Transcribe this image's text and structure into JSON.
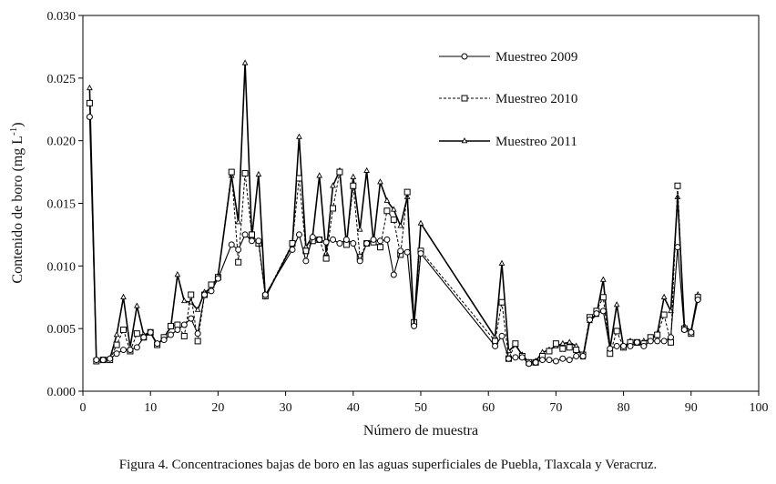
{
  "chart_data": {
    "type": "line",
    "title": "",
    "xlabel": "Número de muestra",
    "ylabel_main": "Contenido de boro (mg L",
    "ylabel_sup": "-1",
    "ylabel_end": ")",
    "xlim": [
      0,
      100
    ],
    "ylim": [
      0,
      0.03
    ],
    "xticks": [
      0,
      10,
      20,
      30,
      40,
      50,
      60,
      70,
      80,
      90,
      100
    ],
    "xtick_labels": [
      "0",
      "10",
      "20",
      "30",
      "40",
      "50",
      "60",
      "70",
      "80",
      "90",
      "100"
    ],
    "yticks": [
      0,
      0.005,
      0.01,
      0.015,
      0.02,
      0.025,
      0.03
    ],
    "ytick_labels": [
      "0.000",
      "0.005",
      "0.010",
      "0.015",
      "0.020",
      "0.025",
      "0.030"
    ],
    "legend_position": "top-right",
    "series": [
      {
        "name": "Muestreo 2009",
        "marker": "circle",
        "line": "solid",
        "x": [
          1,
          2,
          3,
          4,
          5,
          6,
          7,
          8,
          9,
          10,
          11,
          12,
          13,
          14,
          15,
          16,
          17,
          18,
          19,
          20,
          22,
          23,
          24,
          25,
          26,
          27,
          31,
          32,
          33,
          34,
          35,
          36,
          37,
          38,
          39,
          40,
          41,
          42,
          43,
          44,
          45,
          46,
          47,
          48,
          49,
          50,
          61,
          62,
          63,
          64,
          65,
          66,
          67,
          68,
          69,
          70,
          71,
          72,
          73,
          74,
          75,
          76,
          77,
          78,
          79,
          80,
          81,
          82,
          83,
          84,
          85,
          86,
          87,
          88,
          89,
          90,
          91
        ],
        "values": [
          0.0219,
          0.0025,
          0.0025,
          0.0026,
          0.003,
          0.0033,
          0.0033,
          0.0035,
          0.0043,
          0.0047,
          0.0038,
          0.0041,
          0.0045,
          0.0049,
          0.0053,
          0.0058,
          0.0046,
          0.0077,
          0.008,
          0.009,
          0.0117,
          0.0113,
          0.0125,
          0.012,
          0.012,
          0.0077,
          0.0113,
          0.0125,
          0.0104,
          0.0123,
          0.0121,
          0.0119,
          0.0121,
          0.0118,
          0.0121,
          0.0118,
          0.0104,
          0.0118,
          0.0121,
          0.012,
          0.0121,
          0.0093,
          0.0112,
          0.0111,
          0.0052,
          0.011,
          0.0036,
          0.0044,
          0.0026,
          0.0027,
          0.0027,
          0.0022,
          0.0023,
          0.0025,
          0.0025,
          0.0024,
          0.0026,
          0.0025,
          0.0028,
          0.0028,
          0.0057,
          0.0062,
          0.0064,
          0.0034,
          0.0036,
          0.0036,
          0.0036,
          0.0039,
          0.0036,
          0.004,
          0.004,
          0.004,
          0.0043,
          0.0115,
          0.0049,
          0.0047,
          0.0073
        ]
      },
      {
        "name": "Muestreo 2010",
        "marker": "square",
        "line": "dashed",
        "x": [
          1,
          2,
          3,
          4,
          5,
          6,
          7,
          8,
          9,
          10,
          11,
          12,
          13,
          14,
          15,
          16,
          17,
          18,
          19,
          20,
          22,
          23,
          24,
          25,
          26,
          27,
          31,
          32,
          33,
          34,
          35,
          36,
          37,
          38,
          39,
          40,
          41,
          42,
          43,
          44,
          45,
          46,
          47,
          48,
          49,
          50,
          61,
          62,
          63,
          64,
          65,
          66,
          67,
          68,
          69,
          70,
          71,
          72,
          73,
          74,
          75,
          76,
          77,
          78,
          79,
          80,
          81,
          82,
          83,
          84,
          85,
          86,
          87,
          88,
          89,
          90,
          91
        ],
        "values": [
          0.023,
          0.0024,
          0.0025,
          0.0025,
          0.0037,
          0.0049,
          0.0032,
          0.0046,
          0.0043,
          0.0047,
          0.0037,
          0.0043,
          0.0052,
          0.0053,
          0.0044,
          0.0077,
          0.004,
          0.0077,
          0.0085,
          0.0091,
          0.0175,
          0.0103,
          0.0174,
          0.0125,
          0.0118,
          0.0076,
          0.0118,
          0.017,
          0.0112,
          0.012,
          0.0121,
          0.0106,
          0.0146,
          0.0175,
          0.0117,
          0.0164,
          0.0107,
          0.0118,
          0.0119,
          0.0115,
          0.0144,
          0.0137,
          0.0109,
          0.0159,
          0.0055,
          0.0112,
          0.004,
          0.0071,
          0.0026,
          0.0038,
          0.0028,
          0.0023,
          0.0023,
          0.0028,
          0.0032,
          0.0038,
          0.0034,
          0.0035,
          0.0033,
          0.0029,
          0.0059,
          0.0064,
          0.0075,
          0.003,
          0.0048,
          0.0035,
          0.0039,
          0.0039,
          0.0038,
          0.0043,
          0.0045,
          0.0061,
          0.0039,
          0.0164,
          0.005,
          0.0046,
          0.0075
        ]
      },
      {
        "name": "Muestreo 2011",
        "marker": "triangle",
        "line": "solid",
        "x": [
          1,
          2,
          3,
          4,
          5,
          6,
          7,
          8,
          9,
          10,
          11,
          12,
          13,
          14,
          15,
          16,
          17,
          18,
          19,
          20,
          22,
          23,
          24,
          25,
          26,
          27,
          31,
          32,
          33,
          34,
          35,
          36,
          37,
          38,
          39,
          40,
          41,
          42,
          43,
          44,
          45,
          46,
          47,
          48,
          49,
          50,
          61,
          62,
          63,
          64,
          65,
          66,
          67,
          68,
          69,
          70,
          71,
          72,
          73,
          74,
          75,
          76,
          77,
          78,
          79,
          80,
          81,
          82,
          83,
          84,
          85,
          86,
          87,
          88,
          89,
          90,
          91
        ],
        "values": [
          0.0242,
          0.0025,
          0.0025,
          0.0026,
          0.0045,
          0.0075,
          0.0035,
          0.0068,
          0.0045,
          0.0047,
          0.0037,
          0.0043,
          0.0051,
          0.0093,
          0.0072,
          0.0071,
          0.0065,
          0.0079,
          0.0082,
          0.0092,
          0.0172,
          0.0135,
          0.0262,
          0.0123,
          0.0173,
          0.0075,
          0.0117,
          0.0203,
          0.0115,
          0.0124,
          0.0172,
          0.011,
          0.0164,
          0.0176,
          0.0117,
          0.0171,
          0.0129,
          0.0176,
          0.0119,
          0.0167,
          0.0152,
          0.0145,
          0.0132,
          0.0155,
          0.0053,
          0.0134,
          0.0043,
          0.0102,
          0.0032,
          0.0037,
          0.0029,
          0.0023,
          0.0024,
          0.0031,
          0.0033,
          0.0036,
          0.0038,
          0.0039,
          0.0036,
          0.0027,
          0.0056,
          0.0061,
          0.0089,
          0.0034,
          0.0069,
          0.0035,
          0.004,
          0.0038,
          0.004,
          0.0041,
          0.0046,
          0.0075,
          0.0064,
          0.0155,
          0.0052,
          0.0048,
          0.0077
        ]
      }
    ]
  },
  "caption": "Figura 4. Concentraciones bajas de boro en las aguas superficiales de Puebla, Tlaxcala y Veracruz."
}
